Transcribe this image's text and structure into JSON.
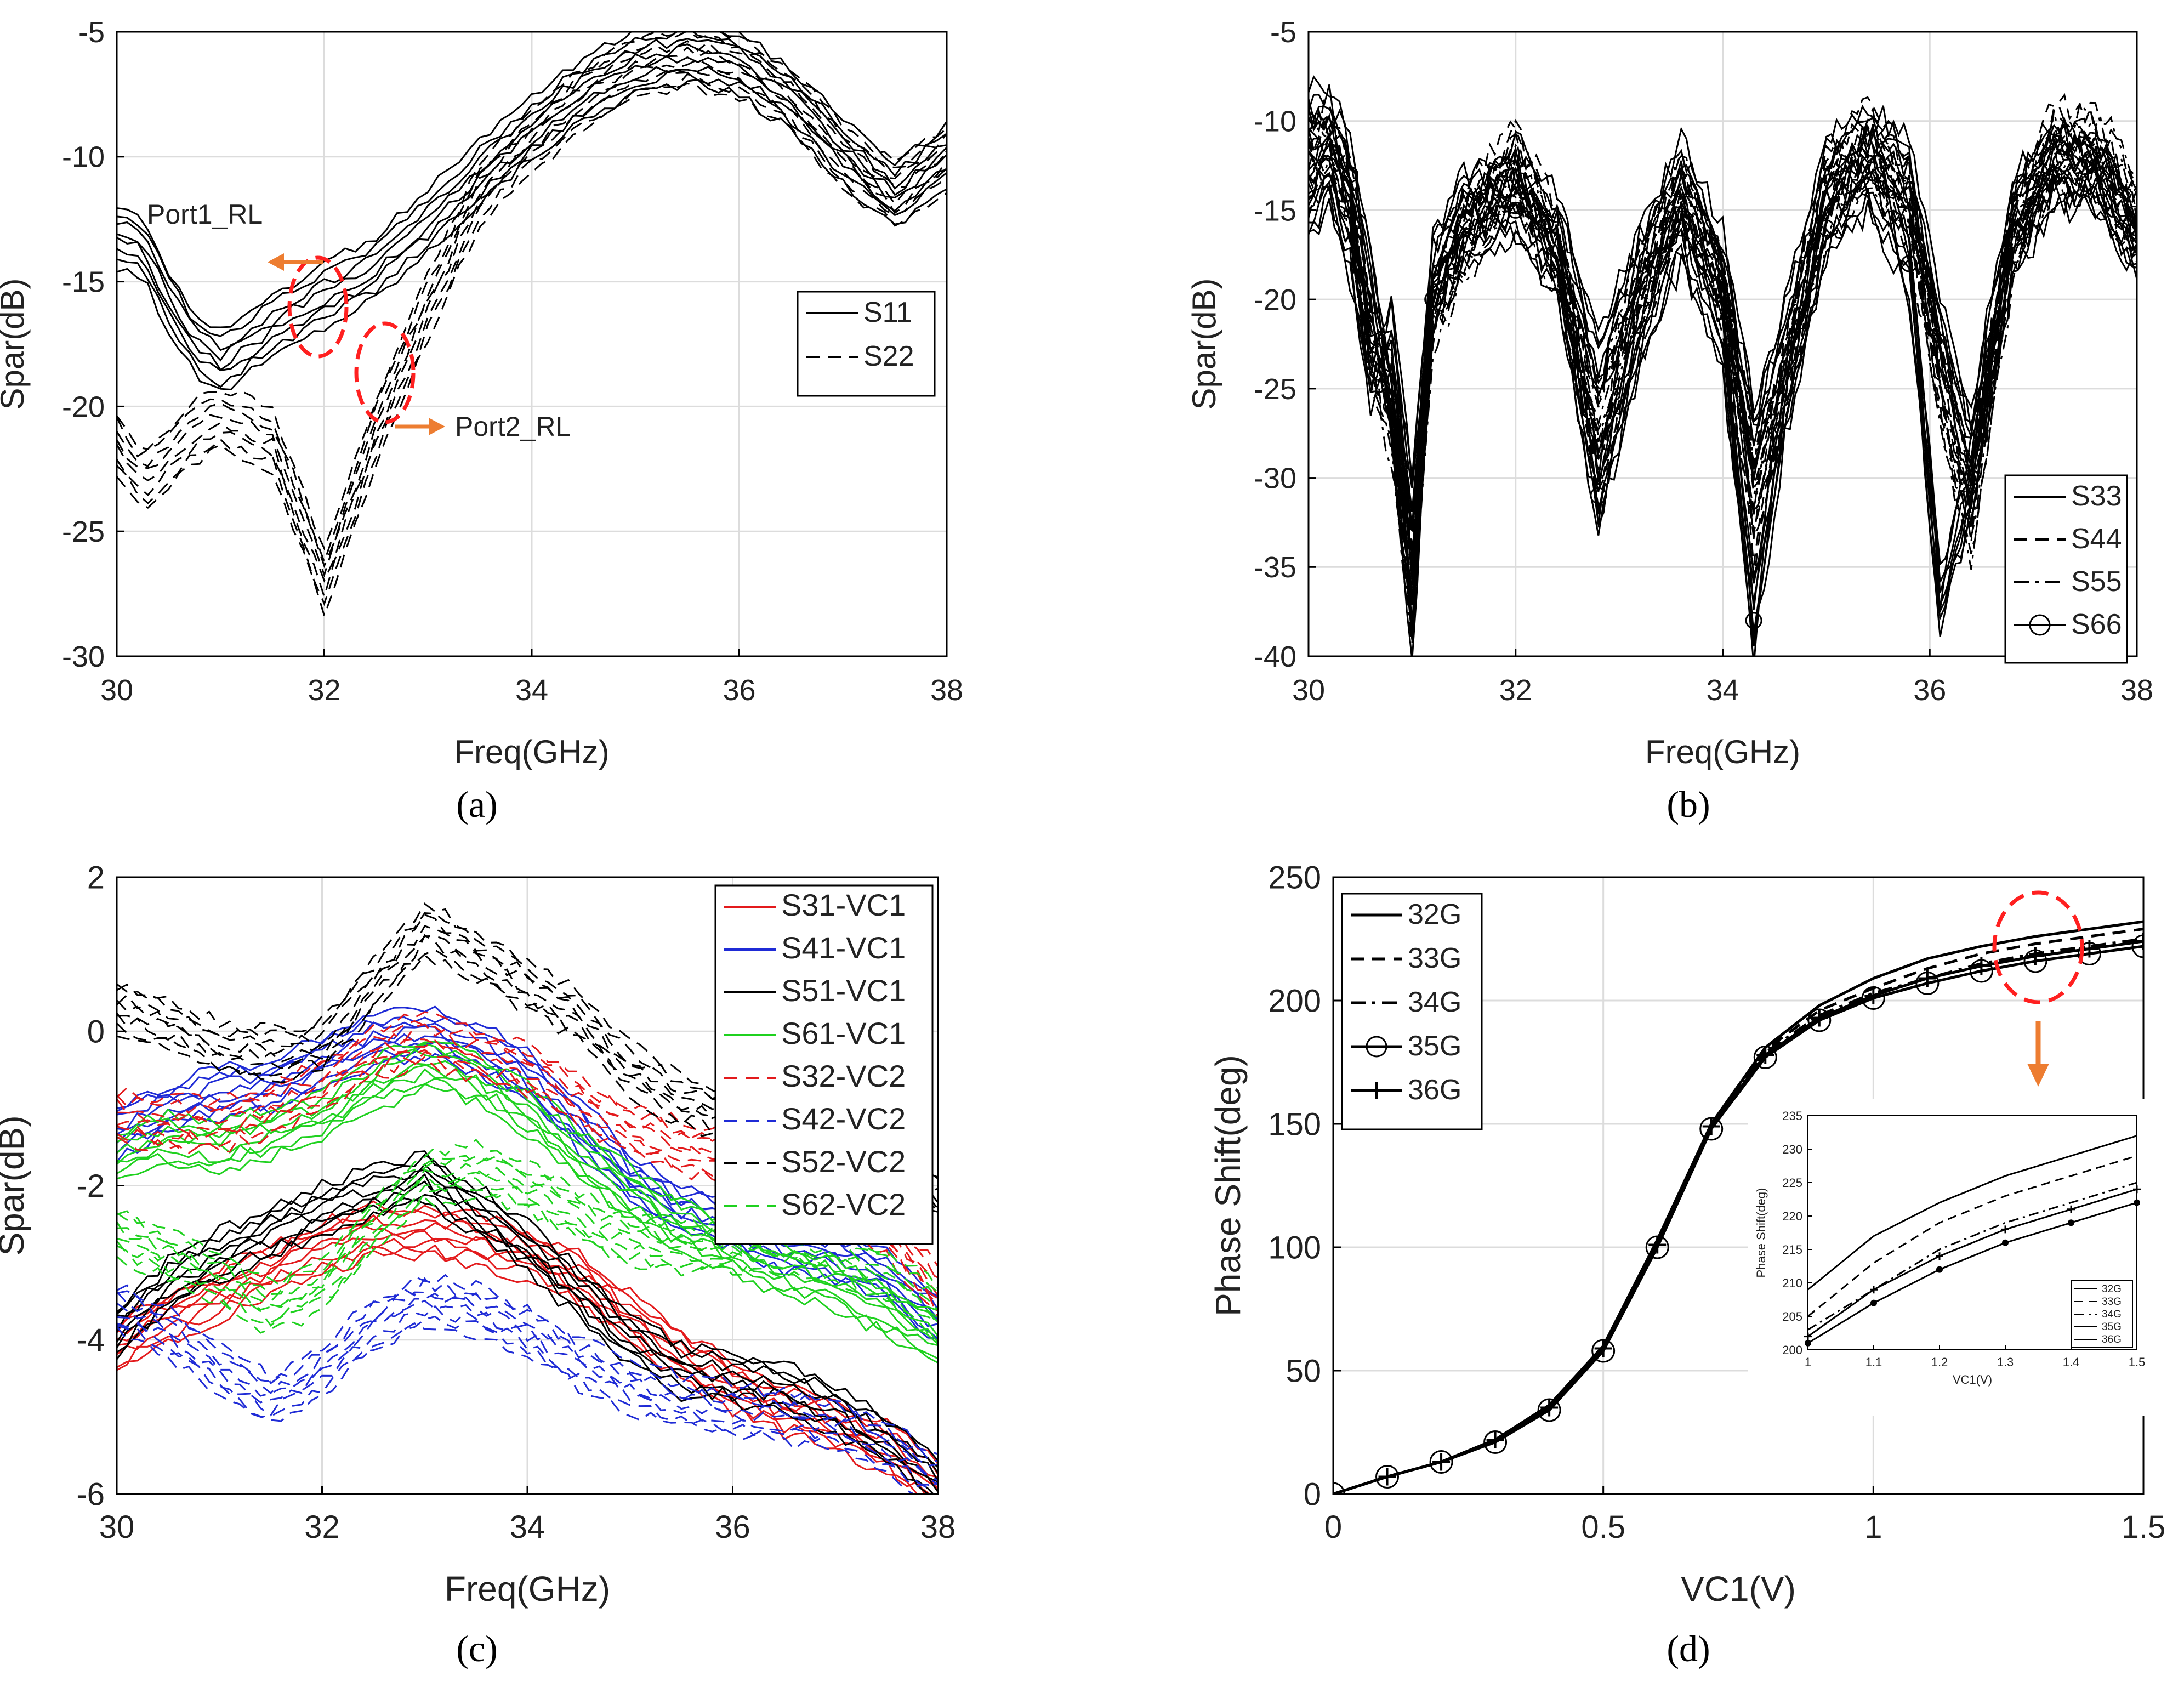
{
  "figure": {
    "captions": [
      "(a)",
      "(b)",
      "(c)",
      "(d)"
    ],
    "colors": {
      "red": "#e31a1c",
      "blue": "#1f2bd6",
      "green": "#1fd11f",
      "black": "#000000",
      "orange": "#ed7d31",
      "annot_red": "#ff2020"
    }
  },
  "chart_data": [
    {
      "type": "line",
      "caption": "(a)",
      "title": "",
      "xlabel": "Freq(GHz)",
      "ylabel": "Spar(dB)",
      "xlim": [
        30,
        38
      ],
      "ylim": [
        -30,
        -5
      ],
      "xticks": [
        30,
        32,
        34,
        36,
        38
      ],
      "yticks": [
        -30,
        -25,
        -20,
        -15,
        -10,
        -5
      ],
      "grid": true,
      "legend_position": "right",
      "x": [
        30,
        30.25,
        30.5,
        30.75,
        31,
        31.5,
        32,
        32.5,
        33,
        33.5,
        34,
        34.5,
        35,
        35.5,
        36,
        36.5,
        37,
        37.5,
        38
      ],
      "series": [
        {
          "name": "S11",
          "style": "solid",
          "values": [
            -13.2,
            -13.5,
            -15.8,
            -17.5,
            -18.2,
            -16.8,
            -15.6,
            -14.4,
            -12.6,
            -10.6,
            -8.8,
            -7.3,
            -6.2,
            -5.8,
            -6.3,
            -7.7,
            -9.8,
            -11.6,
            -9.9
          ]
        },
        {
          "name": "S22",
          "style": "dashed",
          "values": [
            -21.5,
            -23.0,
            -22.0,
            -21.0,
            -20.5,
            -21.3,
            -27.0,
            -21.0,
            -16.0,
            -11.5,
            -9.4,
            -7.7,
            -6.5,
            -6.0,
            -6.4,
            -7.7,
            -10.0,
            -11.5,
            -10.1
          ]
        }
      ],
      "annotations": [
        "Port1_RL",
        "Port2_RL"
      ]
    },
    {
      "type": "line",
      "caption": "(b)",
      "title": "",
      "xlabel": "Freq(GHz)",
      "ylabel": "Spar(dB)",
      "xlim": [
        30,
        38
      ],
      "ylim": [
        -40,
        -5
      ],
      "xticks": [
        30,
        32,
        34,
        36,
        38
      ],
      "yticks": [
        -40,
        -35,
        -30,
        -25,
        -20,
        -15,
        -10,
        -5
      ],
      "grid": true,
      "legend_position": "bottom-right",
      "x": [
        30,
        30.2,
        30.4,
        30.6,
        30.8,
        31.0,
        31.2,
        31.5,
        32.0,
        32.4,
        32.8,
        33.2,
        33.6,
        34.0,
        34.3,
        34.6,
        35.0,
        35.4,
        35.8,
        36.1,
        36.4,
        36.8,
        37.2,
        37.6,
        38.0
      ],
      "series": [
        {
          "name": "S33",
          "style": "solid",
          "values": [
            -15,
            -13,
            -17,
            -24,
            -22,
            -32,
            -18,
            -15,
            -13,
            -16,
            -24,
            -18,
            -13,
            -18,
            -28,
            -22,
            -13,
            -11,
            -13,
            -22,
            -28,
            -15,
            -12,
            -13,
            -17
          ]
        },
        {
          "name": "S44",
          "style": "dashed",
          "values": [
            -13,
            -11,
            -14,
            -22,
            -25,
            -34,
            -20,
            -16,
            -12,
            -17,
            -30,
            -20,
            -14,
            -20,
            -33,
            -24,
            -14,
            -11,
            -14,
            -24,
            -31,
            -16,
            -11,
            -12,
            -16
          ]
        },
        {
          "name": "S55",
          "style": "dashdot",
          "values": [
            -12,
            -12,
            -15,
            -23,
            -27,
            -37,
            -21,
            -17,
            -13,
            -18,
            -27,
            -19,
            -14,
            -19,
            -30,
            -25,
            -15,
            -12,
            -15,
            -25,
            -33,
            -17,
            -12,
            -11,
            -15
          ]
        },
        {
          "name": "S66",
          "style": "circle",
          "values": [
            -10,
            -10,
            -13,
            -19,
            -26,
            -38,
            -20,
            -16,
            -15,
            -18,
            -31,
            -22,
            -16,
            -22,
            -38,
            -26,
            -16,
            -13,
            -18,
            -37,
            -30,
            -17,
            -13,
            -13,
            -16
          ]
        }
      ]
    },
    {
      "type": "line",
      "caption": "(c)",
      "title": "",
      "xlabel": "Freq(GHz)",
      "ylabel": "Spar(dB)",
      "xlim": [
        30,
        38
      ],
      "ylim": [
        -6,
        2
      ],
      "xticks": [
        30,
        32,
        34,
        36,
        38
      ],
      "yticks": [
        -6,
        -4,
        -2,
        0,
        2
      ],
      "grid": true,
      "legend_position": "top-right",
      "x": [
        30,
        30.5,
        31,
        31.5,
        32,
        32.5,
        33,
        33.5,
        34,
        34.5,
        35,
        35.5,
        36,
        36.5,
        37,
        37.5,
        38
      ],
      "series": [
        {
          "name": "S31-VC1",
          "color": "red",
          "style": "solid",
          "values": [
            -4.1,
            -3.7,
            -3.4,
            -3.1,
            -2.8,
            -2.6,
            -2.6,
            -2.7,
            -2.9,
            -3.2,
            -3.7,
            -4.2,
            -4.6,
            -4.9,
            -5.1,
            -5.4,
            -5.9
          ]
        },
        {
          "name": "S41-VC1",
          "color": "blue",
          "style": "solid",
          "values": [
            -1.3,
            -1.0,
            -0.8,
            -0.7,
            -0.4,
            -0.1,
            0.0,
            -0.2,
            -0.6,
            -1.2,
            -1.9,
            -2.3,
            -2.5,
            -2.8,
            -2.9,
            -3.2,
            -3.7
          ]
        },
        {
          "name": "S51-VC1",
          "color": "black",
          "style": "solid",
          "values": [
            -3.9,
            -3.3,
            -2.9,
            -2.6,
            -2.3,
            -2.1,
            -1.9,
            -2.3,
            -2.8,
            -3.4,
            -4.0,
            -4.4,
            -4.5,
            -4.6,
            -4.9,
            -5.3,
            -5.8
          ]
        },
        {
          "name": "S61-VC1",
          "color": "green",
          "style": "solid",
          "values": [
            -1.6,
            -1.4,
            -1.5,
            -1.3,
            -1.1,
            -0.7,
            -0.4,
            -0.6,
            -1.0,
            -1.6,
            -2.1,
            -2.5,
            -2.8,
            -3.1,
            -3.3,
            -3.6,
            -4.0
          ]
        },
        {
          "name": "S32-VC2",
          "color": "red",
          "style": "dashed",
          "values": [
            -1.1,
            -1.2,
            -1.2,
            -1.0,
            -0.7,
            -0.3,
            -0.1,
            -0.3,
            -0.5,
            -0.9,
            -1.3,
            -1.5,
            -1.6,
            -1.9,
            -2.1,
            -2.6,
            -3.4
          ]
        },
        {
          "name": "S42-VC2",
          "color": "blue",
          "style": "dashed",
          "values": [
            -3.6,
            -3.9,
            -4.4,
            -4.8,
            -4.4,
            -3.8,
            -3.5,
            -3.6,
            -3.9,
            -4.3,
            -4.6,
            -4.8,
            -4.9,
            -5.0,
            -5.1,
            -5.4,
            -5.8
          ]
        },
        {
          "name": "S52-VC2",
          "color": "black",
          "style": "dashed",
          "values": [
            0.3,
            0.1,
            -0.2,
            -0.3,
            -0.2,
            0.6,
            1.3,
            1.0,
            0.6,
            0.2,
            -0.5,
            -0.9,
            -1.1,
            -1.4,
            -1.6,
            -1.9,
            -2.2
          ]
        },
        {
          "name": "S62-VC2",
          "color": "green",
          "style": "dashed",
          "values": [
            -2.6,
            -2.9,
            -3.2,
            -3.6,
            -3.3,
            -2.5,
            -1.9,
            -1.8,
            -2.0,
            -2.4,
            -2.7,
            -2.8,
            -2.8,
            -2.8,
            -2.9,
            -3.2,
            -3.6
          ]
        }
      ]
    },
    {
      "type": "line",
      "caption": "(d)",
      "title": "",
      "xlabel": "VC1(V)",
      "ylabel": "Phase Shift(deg)",
      "xlim": [
        0,
        1.5
      ],
      "ylim": [
        0,
        250
      ],
      "xticks": [
        0,
        0.5,
        1,
        1.5
      ],
      "yticks": [
        0,
        50,
        100,
        150,
        200,
        250
      ],
      "grid": true,
      "legend_position": "top-left",
      "x": [
        0,
        0.1,
        0.2,
        0.3,
        0.4,
        0.5,
        0.6,
        0.7,
        0.8,
        0.9,
        1.0,
        1.1,
        1.2,
        1.3,
        1.4,
        1.5
      ],
      "series": [
        {
          "name": "32G",
          "style": "solid",
          "values": [
            0,
            7,
            13,
            22,
            36,
            60,
            103,
            150,
            181,
            198,
            209,
            217,
            222,
            226,
            229,
            232
          ]
        },
        {
          "name": "33G",
          "style": "dashed",
          "values": [
            0,
            7,
            13,
            22,
            35,
            59,
            102,
            149,
            180,
            196,
            205,
            213,
            219,
            223,
            226,
            229
          ]
        },
        {
          "name": "34G",
          "style": "dashdot",
          "values": [
            0,
            7,
            13,
            22,
            35,
            59,
            101,
            149,
            179,
            194,
            203,
            209,
            215,
            219,
            222,
            225
          ]
        },
        {
          "name": "35G",
          "style": "circle",
          "values": [
            0,
            7,
            13,
            21,
            34,
            58,
            100,
            148,
            177,
            192,
            201,
            207,
            212,
            216,
            219,
            222
          ]
        },
        {
          "name": "36G",
          "style": "plus",
          "values": [
            0,
            7,
            13,
            22,
            35,
            59,
            101,
            149,
            178,
            193,
            202,
            209,
            214,
            218,
            221,
            224
          ]
        }
      ],
      "inset": {
        "xlabel": "VC1(V)",
        "ylabel": "Phase Shift(deg)",
        "xlim": [
          1,
          1.5
        ],
        "ylim": [
          200,
          235
        ],
        "xticks": [
          1,
          1.1,
          1.2,
          1.3,
          1.4,
          1.5
        ],
        "xtick_labels": [
          "1",
          "1.1",
          "1.2",
          "1.3",
          "1.4",
          "1.5"
        ],
        "yticks": [
          200,
          205,
          210,
          215,
          220,
          225,
          230,
          235
        ],
        "legend_position": "bottom-right"
      }
    }
  ]
}
